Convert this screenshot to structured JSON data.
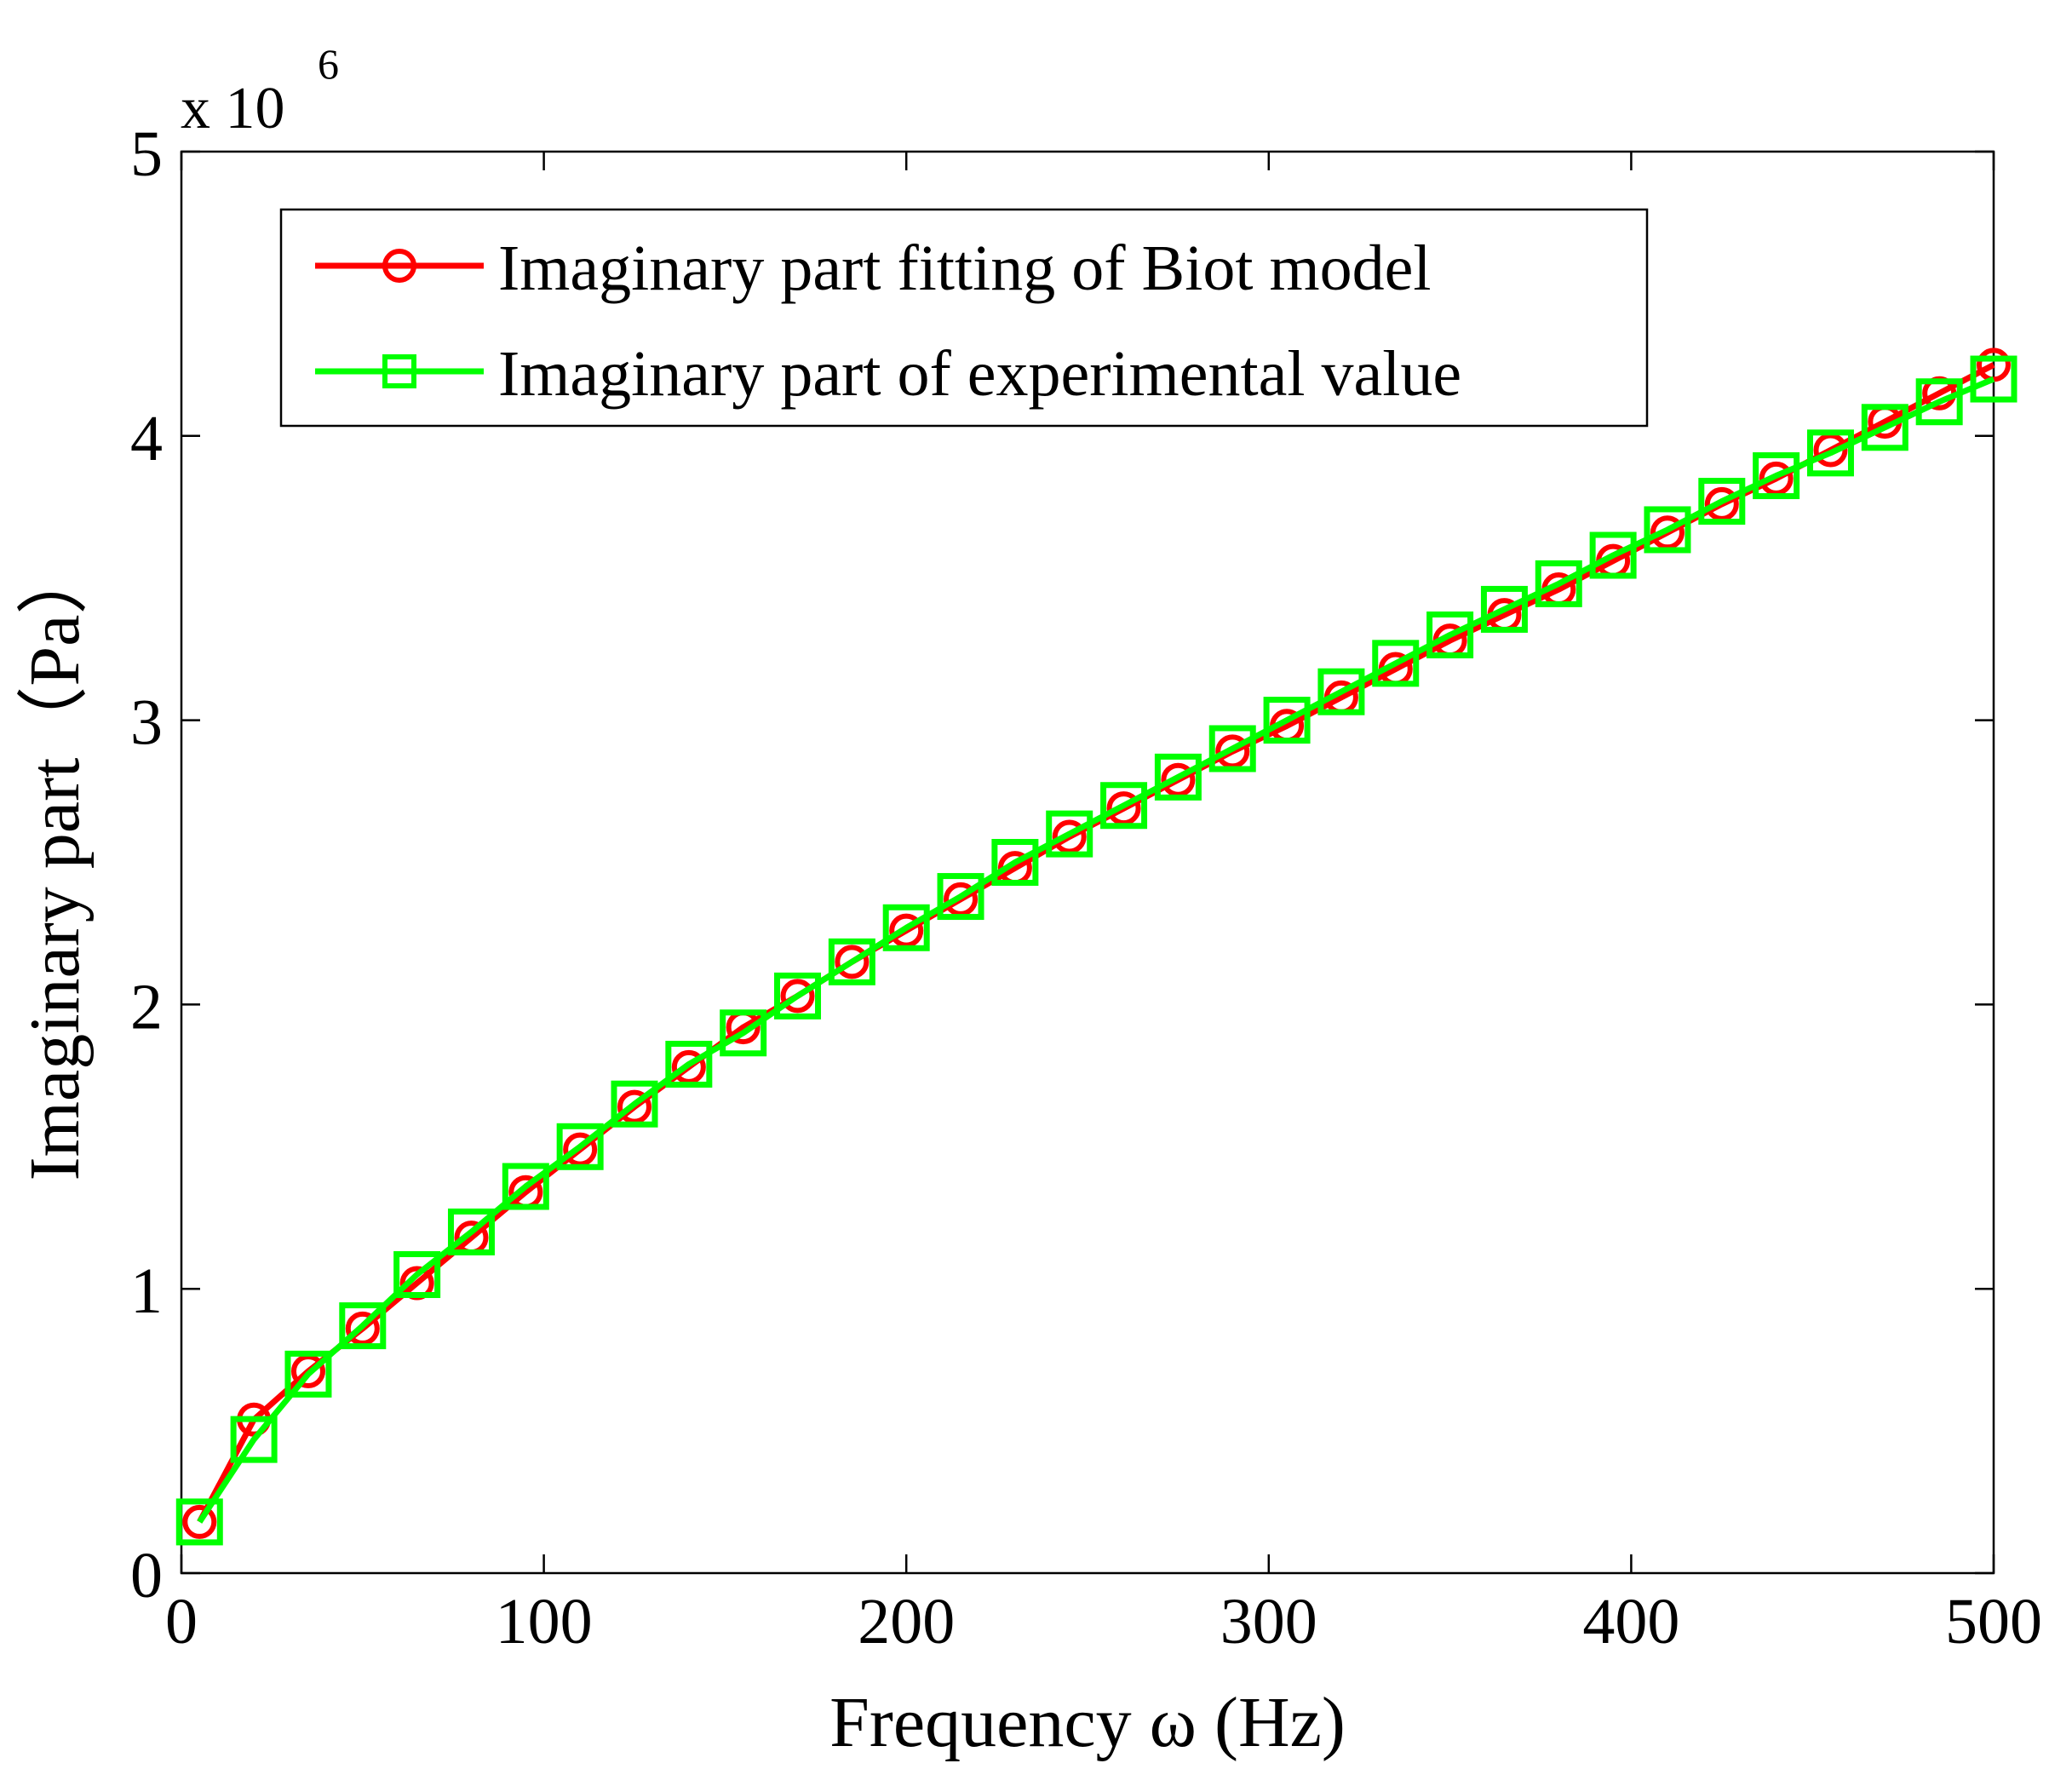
{
  "chart_data": {
    "type": "line",
    "title": "",
    "xlabel": "Frequency ω (Hz)",
    "ylabel": "Imaginary part（Pa）",
    "y_multiplier_base": "x 10",
    "y_multiplier_exponent": "6",
    "xlim": [
      0,
      500
    ],
    "ylim": [
      0,
      5
    ],
    "xticks": [
      0,
      100,
      200,
      300,
      400,
      500
    ],
    "yticks": [
      0,
      1,
      2,
      3,
      4,
      5
    ],
    "grid": false,
    "legend_position": "top-left",
    "x": [
      5,
      20,
      35,
      50,
      65,
      80,
      95,
      110,
      125,
      140,
      155,
      170,
      185,
      200,
      215,
      230,
      245,
      260,
      275,
      290,
      305,
      320,
      335,
      350,
      365,
      380,
      395,
      410,
      425,
      440,
      455,
      470,
      485,
      500
    ],
    "series": [
      {
        "name": "Imaginary part fitting of Biot model",
        "color": "#ff0000",
        "marker": "circle",
        "values": [
          0.18,
          0.54,
          0.71,
          0.86,
          1.02,
          1.18,
          1.34,
          1.49,
          1.64,
          1.78,
          1.92,
          2.03,
          2.15,
          2.26,
          2.37,
          2.48,
          2.59,
          2.69,
          2.79,
          2.89,
          2.98,
          3.08,
          3.18,
          3.28,
          3.37,
          3.46,
          3.56,
          3.66,
          3.76,
          3.85,
          3.95,
          4.05,
          4.15,
          4.25
        ]
      },
      {
        "name": "Imaginary part of experimental value",
        "color": "#00ff00",
        "marker": "square",
        "values": [
          0.18,
          0.47,
          0.7,
          0.87,
          1.05,
          1.2,
          1.36,
          1.5,
          1.65,
          1.79,
          1.9,
          2.03,
          2.15,
          2.27,
          2.38,
          2.5,
          2.6,
          2.7,
          2.8,
          2.9,
          3.0,
          3.1,
          3.2,
          3.3,
          3.39,
          3.48,
          3.58,
          3.67,
          3.77,
          3.86,
          3.94,
          4.03,
          4.12,
          4.2
        ]
      }
    ]
  }
}
